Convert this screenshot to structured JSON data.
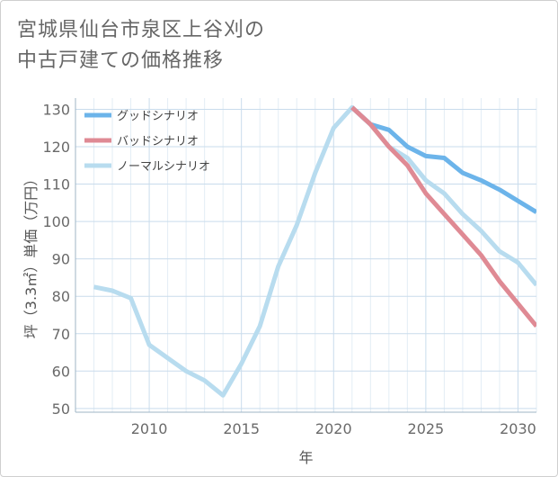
{
  "title": {
    "line1": "宮城県仙台市泉区上谷刈の",
    "line2": "中古戸建ての価格推移"
  },
  "chart_data": {
    "type": "line",
    "title": "宮城県仙台市泉区上谷刈の中古戸建ての価格推移",
    "xlabel": "年",
    "ylabel": "坪（3.3㎡）単価（万円）",
    "xlim": [
      2006,
      2031
    ],
    "ylim": [
      49,
      133
    ],
    "xticks": [
      2010,
      2015,
      2020,
      2025,
      2030
    ],
    "yticks": [
      50,
      60,
      70,
      80,
      90,
      100,
      110,
      120,
      130
    ],
    "grid": true,
    "legend_position": "top-left",
    "series": [
      {
        "name": "グッドシナリオ",
        "color": "#6cb4ea",
        "points": [
          [
            2021,
            130.5
          ],
          [
            2022,
            126
          ],
          [
            2023,
            124.5
          ],
          [
            2024,
            120
          ],
          [
            2025,
            117.5
          ],
          [
            2026,
            117
          ],
          [
            2027,
            113
          ],
          [
            2028,
            111
          ],
          [
            2029,
            108.5
          ],
          [
            2030,
            105.5
          ],
          [
            2031,
            102.5
          ]
        ]
      },
      {
        "name": "バッドシナリオ",
        "color": "#df8a94",
        "points": [
          [
            2021,
            130.5
          ],
          [
            2022,
            126
          ],
          [
            2023,
            120
          ],
          [
            2024,
            115
          ],
          [
            2025,
            107.5
          ],
          [
            2026,
            102
          ],
          [
            2027,
            96.5
          ],
          [
            2028,
            91
          ],
          [
            2029,
            84
          ],
          [
            2030,
            78
          ],
          [
            2031,
            72
          ]
        ]
      },
      {
        "name": "ノーマルシナリオ",
        "color": "#b8dcef",
        "points": [
          [
            2007,
            82.5
          ],
          [
            2008,
            81.5
          ],
          [
            2009,
            79.5
          ],
          [
            2010,
            67
          ],
          [
            2011,
            63.5
          ],
          [
            2012,
            60
          ],
          [
            2013,
            57.5
          ],
          [
            2014,
            53.5
          ],
          [
            2015,
            62
          ],
          [
            2016,
            72
          ],
          [
            2017,
            88
          ],
          [
            2018,
            99
          ],
          [
            2019,
            113
          ],
          [
            2020,
            125
          ],
          [
            2021,
            130.5
          ],
          [
            2022,
            126
          ],
          [
            2023,
            120
          ],
          [
            2024,
            117
          ],
          [
            2025,
            111
          ],
          [
            2026,
            107.5
          ],
          [
            2027,
            102
          ],
          [
            2028,
            97.5
          ],
          [
            2029,
            92
          ],
          [
            2030,
            89
          ],
          [
            2031,
            83
          ]
        ]
      }
    ]
  }
}
